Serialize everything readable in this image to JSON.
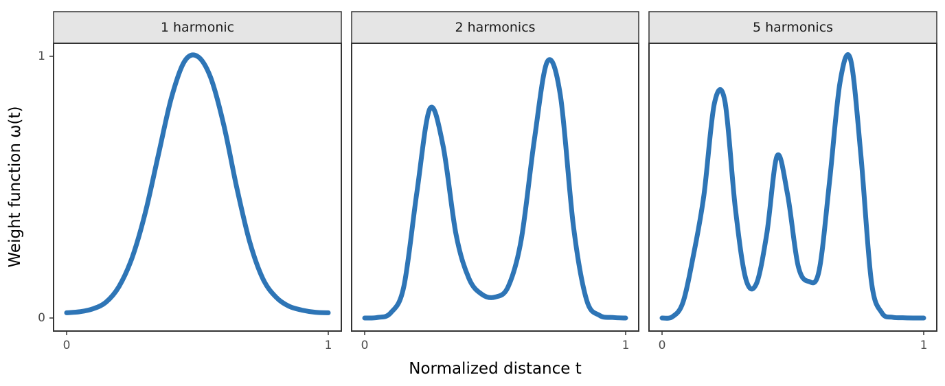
{
  "chart_data": {
    "type": "line",
    "layout": "facet",
    "xlabel": "Normalized distance t",
    "ylabel": "Weight function ω(t)",
    "xlim": [
      0,
      1
    ],
    "ylim": [
      0,
      1
    ],
    "x_ticks": [
      0,
      1
    ],
    "y_ticks": [
      0,
      1
    ],
    "grid": false,
    "line_color": "#2e75b6",
    "panels": [
      {
        "title": "1 harmonic",
        "series": [
          {
            "x": [
              0.0,
              0.05,
              0.1,
              0.15,
              0.2,
              0.25,
              0.3,
              0.35,
              0.4,
              0.45,
              0.5,
              0.55,
              0.6,
              0.65,
              0.7,
              0.75,
              0.8,
              0.85,
              0.9,
              0.95,
              1.0
            ],
            "y": [
              0.02,
              0.024,
              0.035,
              0.06,
              0.12,
              0.23,
              0.4,
              0.62,
              0.84,
              0.98,
              1.0,
              0.92,
              0.74,
              0.5,
              0.29,
              0.15,
              0.08,
              0.045,
              0.03,
              0.022,
              0.02
            ]
          }
        ]
      },
      {
        "title": "2 harmonics",
        "series": [
          {
            "x": [
              0.0,
              0.05,
              0.1,
              0.15,
              0.2,
              0.25,
              0.3,
              0.35,
              0.4,
              0.45,
              0.5,
              0.55,
              0.6,
              0.65,
              0.7,
              0.75,
              0.8,
              0.85,
              0.9,
              0.95,
              1.0
            ],
            "y": [
              0.0,
              0.002,
              0.02,
              0.12,
              0.48,
              0.8,
              0.66,
              0.32,
              0.15,
              0.09,
              0.08,
              0.12,
              0.3,
              0.68,
              0.98,
              0.85,
              0.35,
              0.07,
              0.01,
              0.002,
              0.0
            ]
          }
        ]
      },
      {
        "title": "5 harmonics",
        "series": [
          {
            "x": [
              0.0,
              0.04,
              0.08,
              0.12,
              0.16,
              0.2,
              0.24,
              0.28,
              0.32,
              0.36,
              0.4,
              0.44,
              0.48,
              0.52,
              0.56,
              0.6,
              0.64,
              0.68,
              0.72,
              0.76,
              0.8,
              0.84,
              0.88,
              0.92,
              0.96,
              1.0
            ],
            "y": [
              0.0,
              0.005,
              0.06,
              0.24,
              0.47,
              0.82,
              0.83,
              0.42,
              0.15,
              0.13,
              0.32,
              0.62,
              0.47,
              0.2,
              0.14,
              0.18,
              0.52,
              0.9,
              0.99,
              0.62,
              0.14,
              0.02,
              0.003,
              0.001,
              0.0,
              0.0
            ]
          }
        ]
      }
    ]
  }
}
